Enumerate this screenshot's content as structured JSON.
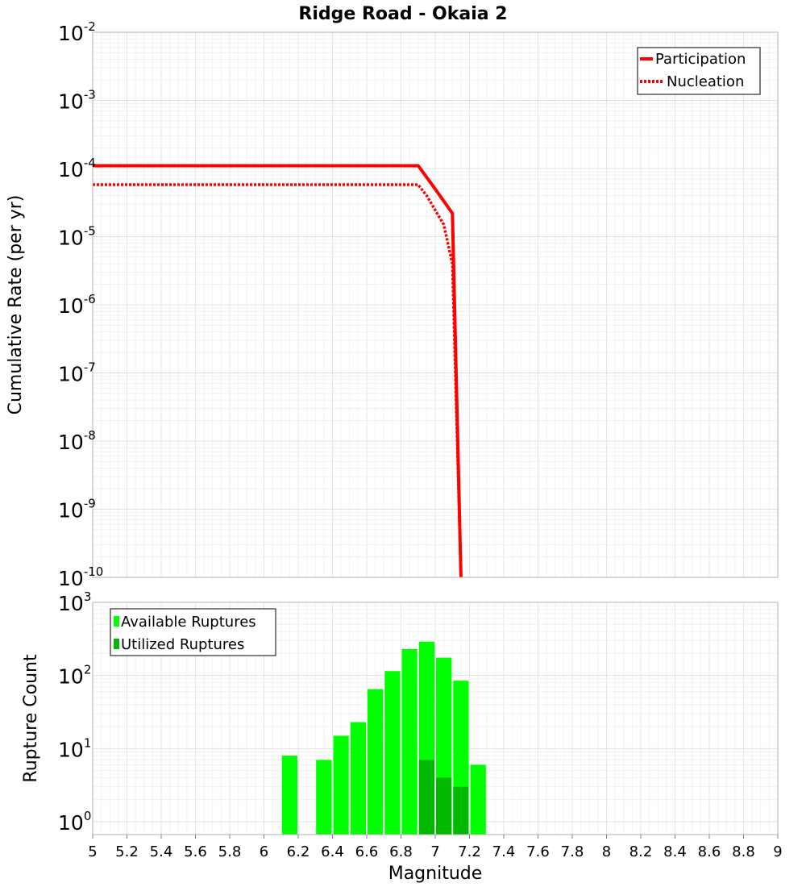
{
  "chart_title": "Ridge Road - Okaia 2",
  "colors": {
    "participation": "#ff0000",
    "nucleation": "#ff0000",
    "available": "#00ff00",
    "utilized": "#00b800",
    "grid": "#ececec",
    "frame": "#b0b0b0"
  },
  "chart_data": [
    {
      "type": "line",
      "ylabel": "Cumulative Rate (per yr)",
      "yscale": "log",
      "ylim": [
        1e-10,
        0.01
      ],
      "xlim": [
        5,
        9
      ],
      "grid": true,
      "legend_position": "top-right",
      "y_ticks": [
        {
          "base": "10",
          "exp": "-10",
          "value": 1e-10
        },
        {
          "base": "10",
          "exp": "-9",
          "value": 1e-09
        },
        {
          "base": "10",
          "exp": "-8",
          "value": 1e-08
        },
        {
          "base": "10",
          "exp": "-7",
          "value": 1e-07
        },
        {
          "base": "10",
          "exp": "-6",
          "value": 1e-06
        },
        {
          "base": "10",
          "exp": "-5",
          "value": 1e-05
        },
        {
          "base": "10",
          "exp": "-4",
          "value": 0.0001
        },
        {
          "base": "10",
          "exp": "-3",
          "value": 0.001
        },
        {
          "base": "10",
          "exp": "-2",
          "value": 0.01
        }
      ],
      "series": [
        {
          "name": "Participation",
          "style": "solid",
          "x": [
            5.0,
            6.9,
            7.0,
            7.1,
            7.15
          ],
          "y": [
            0.00011,
            0.00011,
            5e-05,
            2.2e-05,
            1e-10
          ]
        },
        {
          "name": "Nucleation",
          "style": "dotted",
          "x": [
            5.0,
            6.9,
            6.95,
            7.05,
            7.1,
            7.15
          ],
          "y": [
            5.8e-05,
            5.8e-05,
            4e-05,
            1.5e-05,
            4e-06,
            1e-10
          ]
        }
      ]
    },
    {
      "type": "bar",
      "ylabel": "Rupture Count",
      "xlabel": "Magnitude",
      "yscale": "log",
      "ylim": [
        1,
        1000
      ],
      "xlim": [
        5,
        9
      ],
      "grid": true,
      "legend_position": "top-left",
      "x_ticks": [
        "5",
        "5.2",
        "5.4",
        "5.6",
        "5.8",
        "6",
        "6.2",
        "6.4",
        "6.6",
        "6.8",
        "7",
        "7.2",
        "7.4",
        "7.6",
        "7.8",
        "8",
        "8.2",
        "8.4",
        "8.6",
        "8.8",
        "9"
      ],
      "y_ticks": [
        {
          "base": "10",
          "exp": "0",
          "value": 1
        },
        {
          "base": "10",
          "exp": "1",
          "value": 10
        },
        {
          "base": "10",
          "exp": "2",
          "value": 100
        },
        {
          "base": "10",
          "exp": "3",
          "value": 1000
        }
      ],
      "bin_width": 0.1,
      "series": [
        {
          "name": "Available Ruptures",
          "x": [
            6.15,
            6.35,
            6.45,
            6.55,
            6.65,
            6.75,
            6.85,
            6.95,
            7.05,
            7.15,
            7.25
          ],
          "values": [
            8,
            7,
            15,
            23,
            65,
            115,
            230,
            290,
            175,
            85,
            6
          ]
        },
        {
          "name": "Utilized Ruptures",
          "x": [
            6.95,
            7.05,
            7.15
          ],
          "values": [
            7,
            4,
            3
          ]
        }
      ]
    }
  ]
}
